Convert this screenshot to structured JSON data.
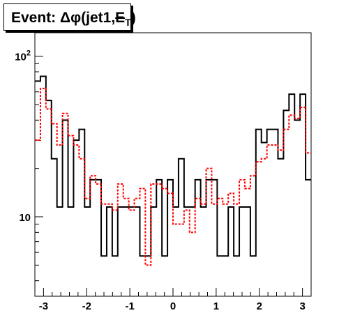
{
  "title": {
    "prefix": "Event: ",
    "delta_phi": "Δφ",
    "args_open": "(jet1,",
    "met_symbol": "E",
    "met_subscript": "T",
    "args_close": ")"
  },
  "chart_data": {
    "type": "histogram",
    "x_range": [
      -3.2,
      3.2
    ],
    "y_range": [
      3.2,
      140
    ],
    "y_scale": "log",
    "grid": false,
    "x_tick_labels": [
      "-3",
      "-2",
      "-1",
      "0",
      "1",
      "2",
      "3"
    ],
    "x_tick_values": [
      -3,
      -2,
      -1,
      0,
      1,
      2,
      3
    ],
    "y_tick_labels": [
      {
        "value": 10,
        "base": "10",
        "exp": ""
      },
      {
        "value": 100,
        "base": "10",
        "exp": "2"
      }
    ],
    "bin_edges": [
      -3.2,
      -3.072,
      -2.944,
      -2.816,
      -2.688,
      -2.56,
      -2.432,
      -2.304,
      -2.176,
      -2.048,
      -1.92,
      -1.792,
      -1.664,
      -1.536,
      -1.408,
      -1.28,
      -1.152,
      -1.024,
      -0.896,
      -0.768,
      -0.64,
      -0.512,
      -0.384,
      -0.256,
      -0.128,
      0,
      0.128,
      0.256,
      0.384,
      0.512,
      0.64,
      0.768,
      0.896,
      1.024,
      1.152,
      1.28,
      1.408,
      1.536,
      1.664,
      1.792,
      1.92,
      2.048,
      2.176,
      2.304,
      2.432,
      2.56,
      2.688,
      2.816,
      2.944,
      3.072,
      3.2
    ],
    "series": [
      {
        "style": "solid",
        "color": "#000000",
        "values": [
          70,
          75,
          53,
          23,
          11.5,
          40,
          11.5,
          30,
          35,
          11.5,
          17,
          17,
          5.7,
          11.5,
          5.7,
          11.5,
          11.5,
          11.5,
          11.5,
          5.7,
          5.7,
          11.5,
          17,
          5.7,
          17,
          11.5,
          23,
          11.5,
          11.5,
          17,
          11.5,
          17,
          17,
          5.7,
          5.7,
          11.5,
          5.7,
          11.5,
          11.5,
          5.7,
          35,
          29,
          35,
          35,
          23,
          46,
          58,
          40,
          58,
          17
        ]
      },
      {
        "style": "dashed",
        "color": "#ff0000",
        "values": [
          30,
          63,
          47,
          38,
          28,
          44,
          32,
          28,
          23,
          13,
          18,
          16,
          12,
          12,
          11,
          16,
          13,
          11,
          13,
          15,
          5,
          16,
          16,
          15,
          14,
          9,
          9,
          11,
          8,
          13,
          12,
          20,
          12,
          13,
          12,
          14,
          12,
          17,
          15,
          18,
          22,
          23,
          28,
          28,
          26,
          35,
          43,
          41,
          48,
          25
        ]
      }
    ]
  }
}
